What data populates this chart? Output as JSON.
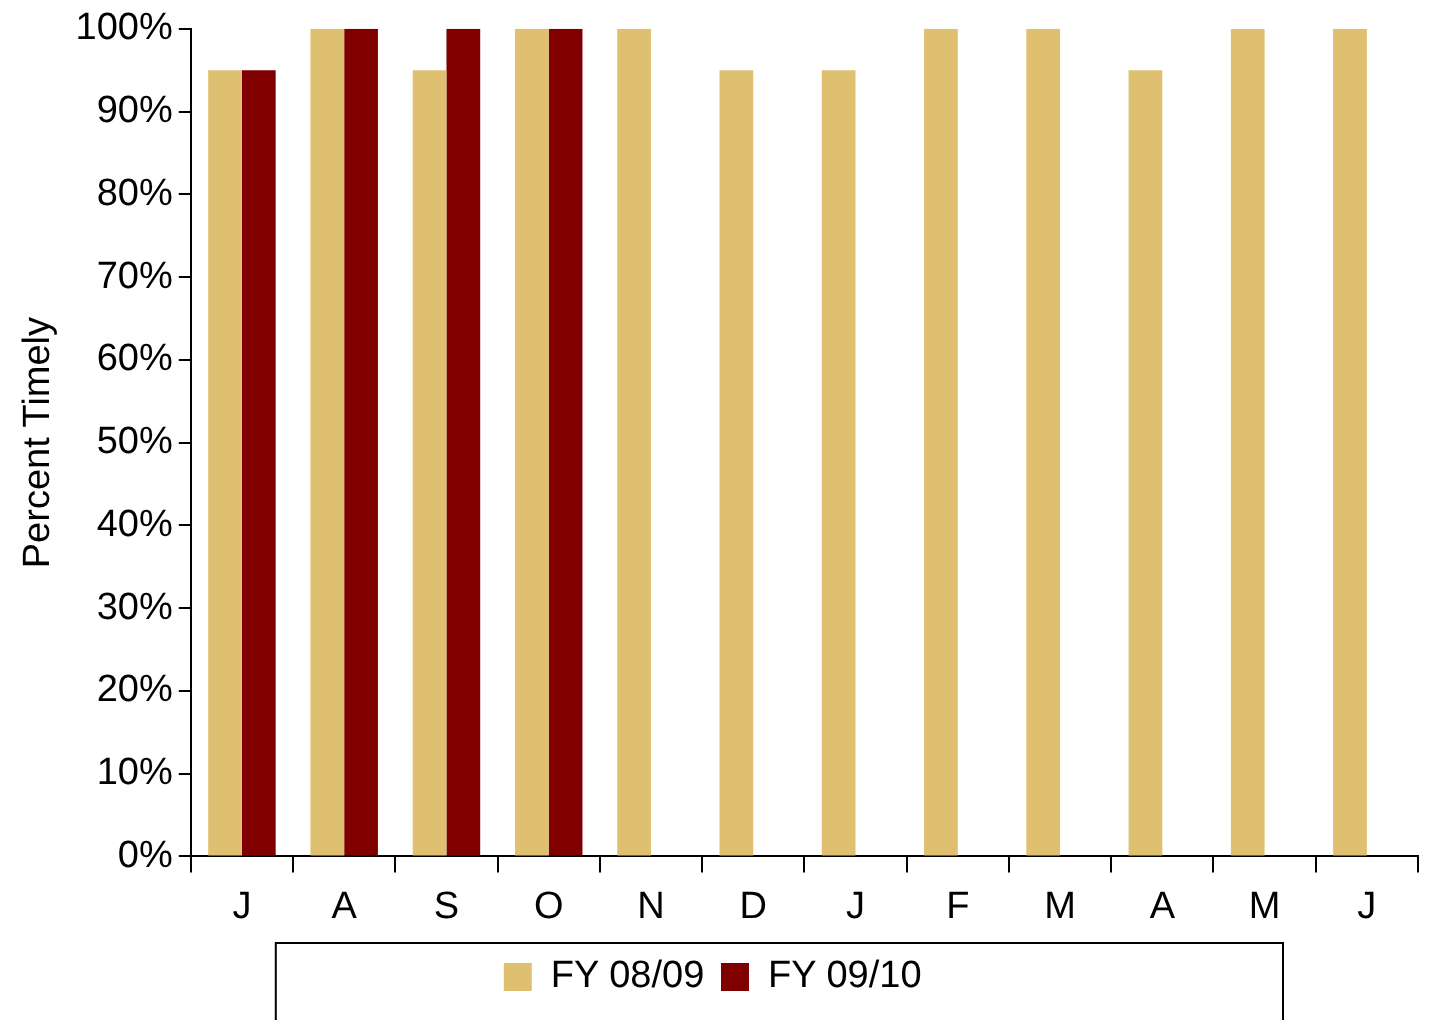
{
  "chart_data": {
    "type": "bar",
    "ylabel": "Percent Timely",
    "categories": [
      "J",
      "A",
      "S",
      "O",
      "N",
      "D",
      "J",
      "F",
      "M",
      "A",
      "M",
      "J"
    ],
    "series": [
      {
        "name": "FY 08/09",
        "color": "#dfc070",
        "values": [
          95,
          100,
          95,
          100,
          100,
          95,
          95,
          100,
          100,
          95,
          100,
          100
        ]
      },
      {
        "name": "FY 09/10",
        "color": "#800000",
        "values": [
          95,
          100,
          100,
          100,
          null,
          null,
          null,
          null,
          null,
          null,
          null,
          null
        ]
      }
    ],
    "ylim": [
      0,
      100
    ],
    "yticks": [
      {
        "value": 0,
        "label": "0%"
      },
      {
        "value": 10,
        "label": "10%"
      },
      {
        "value": 20,
        "label": "20%"
      },
      {
        "value": 30,
        "label": "30%"
      },
      {
        "value": 40,
        "label": "40%"
      },
      {
        "value": 50,
        "label": "50%"
      },
      {
        "value": 60,
        "label": "60%"
      },
      {
        "value": 70,
        "label": "70%"
      },
      {
        "value": 80,
        "label": "80%"
      },
      {
        "value": 90,
        "label": "90%"
      },
      {
        "value": 100,
        "label": "100%"
      }
    ],
    "grid": false,
    "legend": "bottom"
  }
}
